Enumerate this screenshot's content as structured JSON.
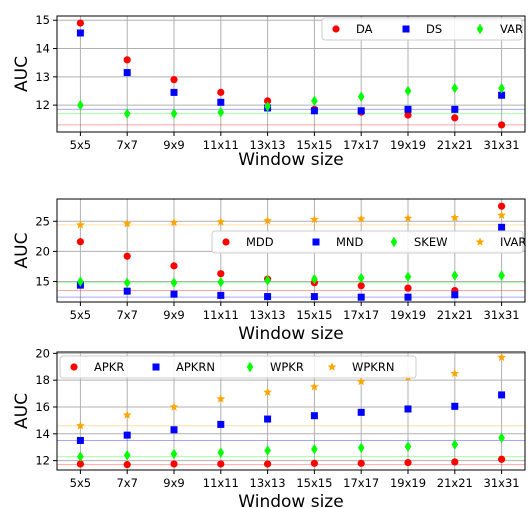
{
  "chart_data": [
    {
      "type": "scatter",
      "categories": [
        "5x5",
        "7x7",
        "9x9",
        "11x11",
        "13x13",
        "15x15",
        "17x17",
        "19x19",
        "21x21",
        "31x31"
      ],
      "xlabel": "Window size",
      "ylabel": "AUC",
      "ylim": [
        11.05,
        15.15
      ],
      "yticks": [
        12,
        13,
        14,
        15
      ],
      "grid": true,
      "legend_position": "top-right",
      "series": [
        {
          "name": "DA",
          "marker": "circle",
          "color": "#ff0000",
          "values": [
            14.9,
            13.6,
            12.9,
            12.45,
            12.15,
            11.85,
            11.75,
            11.65,
            11.55,
            11.3
          ]
        },
        {
          "name": "DS",
          "marker": "square",
          "color": "#0000ff",
          "values": [
            14.55,
            13.15,
            12.45,
            12.1,
            11.9,
            11.8,
            11.8,
            11.85,
            11.85,
            12.35
          ]
        },
        {
          "name": "VAR",
          "marker": "diamond",
          "color": "#00ff00",
          "values": [
            12.0,
            11.7,
            11.7,
            11.75,
            11.95,
            12.15,
            12.3,
            12.5,
            12.6,
            12.6
          ]
        }
      ],
      "hlines": [
        {
          "value": 11.3,
          "color": "#ff0000"
        },
        {
          "value": 11.85,
          "color": "#0000ff"
        },
        {
          "value": 11.7,
          "color": "#00ff00"
        }
      ]
    },
    {
      "type": "scatter",
      "categories": [
        "5x5",
        "7x7",
        "9x9",
        "11x11",
        "13x13",
        "15x15",
        "17x17",
        "19x19",
        "21x21",
        "31x31"
      ],
      "xlabel": "Window size",
      "ylabel": "AUC",
      "ylim": [
        11.6,
        28.7
      ],
      "yticks": [
        15,
        20,
        25
      ],
      "grid": true,
      "legend_position": "center-right",
      "series": [
        {
          "name": "MDD",
          "marker": "circle",
          "color": "#ff0000",
          "values": [
            21.6,
            19.2,
            17.6,
            16.3,
            15.4,
            14.8,
            14.3,
            13.9,
            13.5,
            27.5
          ]
        },
        {
          "name": "MND",
          "marker": "square",
          "color": "#0000ff",
          "values": [
            14.4,
            13.4,
            12.9,
            12.7,
            12.5,
            12.5,
            12.4,
            12.4,
            12.8,
            24.0
          ]
        },
        {
          "name": "SKEW",
          "marker": "diamond",
          "color": "#00ff00",
          "values": [
            15.0,
            14.8,
            14.8,
            14.9,
            15.2,
            15.4,
            15.6,
            15.8,
            16.0,
            16.0
          ]
        },
        {
          "name": "IVAR",
          "marker": "star",
          "color": "#ffa500",
          "values": [
            24.4,
            24.6,
            24.8,
            24.9,
            25.1,
            25.3,
            25.4,
            25.5,
            25.6,
            26.0
          ]
        }
      ],
      "hlines": [
        {
          "value": 13.5,
          "color": "#ff0000"
        },
        {
          "value": 12.4,
          "color": "#0000ff"
        },
        {
          "value": 14.8,
          "color": "#00ff00"
        },
        {
          "value": 24.4,
          "color": "#ffa500"
        }
      ]
    },
    {
      "type": "scatter",
      "categories": [
        "5x5",
        "7x7",
        "9x9",
        "11x11",
        "13x13",
        "15x15",
        "17x17",
        "19x19",
        "21x21",
        "31x31"
      ],
      "xlabel": "Window size",
      "ylabel": "AUC",
      "ylim": [
        11.3,
        20.1
      ],
      "yticks": [
        12,
        14,
        16,
        18,
        20
      ],
      "grid": true,
      "legend_position": "top",
      "series": [
        {
          "name": "APKR",
          "marker": "circle",
          "color": "#ff0000",
          "values": [
            11.75,
            11.7,
            11.75,
            11.75,
            11.75,
            11.8,
            11.8,
            11.85,
            11.9,
            12.1
          ]
        },
        {
          "name": "APKRN",
          "marker": "square",
          "color": "#0000ff",
          "values": [
            13.5,
            13.9,
            14.3,
            14.7,
            15.1,
            15.35,
            15.6,
            15.85,
            16.05,
            16.9
          ]
        },
        {
          "name": "WPKR",
          "marker": "diamond",
          "color": "#00ff00",
          "values": [
            12.3,
            12.4,
            12.5,
            12.6,
            12.75,
            12.85,
            12.95,
            13.05,
            13.2,
            13.7
          ]
        },
        {
          "name": "WPKRN",
          "marker": "star",
          "color": "#ffa500",
          "values": [
            14.6,
            15.4,
            16.0,
            16.6,
            17.1,
            17.5,
            17.9,
            18.2,
            18.5,
            19.7
          ]
        }
      ],
      "hlines": [
        {
          "value": 11.7,
          "color": "#ff0000"
        },
        {
          "value": 13.5,
          "color": "#0000ff"
        },
        {
          "value": 12.3,
          "color": "#00ff00"
        },
        {
          "value": 14.6,
          "color": "#ffa500"
        }
      ]
    }
  ]
}
